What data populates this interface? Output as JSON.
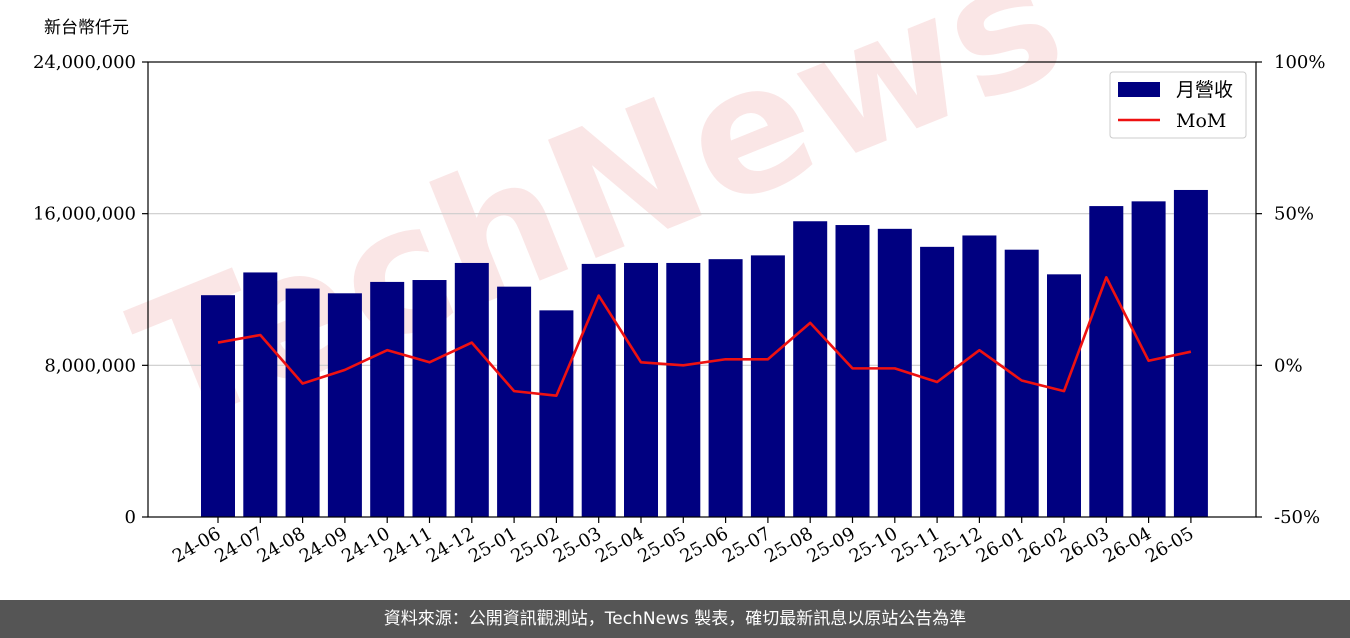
{
  "unit_label": "新台幣仟元",
  "footer_text": "資料來源：公開資訊觀測站，TechNews 製表，確切最新訊息以原站公告為準",
  "watermark_text": "TechNews",
  "colors": {
    "bar": "#000080",
    "line": "#ee1111",
    "grid": "#cccccc"
  },
  "chart_data": {
    "type": "bar",
    "categories": [
      "24-06",
      "24-07",
      "24-08",
      "24-09",
      "24-10",
      "24-11",
      "24-12",
      "25-01",
      "25-02",
      "25-03",
      "25-04",
      "25-05",
      "25-06",
      "25-07",
      "25-08",
      "25-09",
      "25-10",
      "25-11",
      "25-12",
      "26-01",
      "26-02",
      "26-03",
      "26-04",
      "26-05"
    ],
    "series": [
      {
        "name": "月營收",
        "type": "bar",
        "axis": "left",
        "values": [
          11700000,
          12900000,
          12050000,
          11800000,
          12400000,
          12500000,
          13400000,
          12150000,
          10900000,
          13350000,
          13400000,
          13400000,
          13600000,
          13800000,
          15600000,
          15400000,
          15200000,
          14250000,
          14850000,
          14100000,
          12800000,
          16400000,
          16650000,
          17250000
        ]
      },
      {
        "name": "MoM",
        "type": "line",
        "axis": "right",
        "values": [
          7.5,
          10,
          -6,
          -1.5,
          5,
          1,
          7.5,
          -8.5,
          -10,
          23,
          1,
          0,
          2,
          2,
          14,
          -1,
          -1,
          -5.5,
          5,
          -5,
          -8.5,
          29,
          1.5,
          4.5
        ]
      }
    ],
    "yticks_left": [
      "0",
      "8,000,000",
      "16,000,000",
      "24,000,000"
    ],
    "yticks_right": [
      "-50%",
      "0%",
      "50%",
      "100%"
    ],
    "ylim_left": [
      0,
      24000000
    ],
    "ylim_right": [
      -50,
      100
    ],
    "grid": "horizontal",
    "legend": "top-right"
  }
}
